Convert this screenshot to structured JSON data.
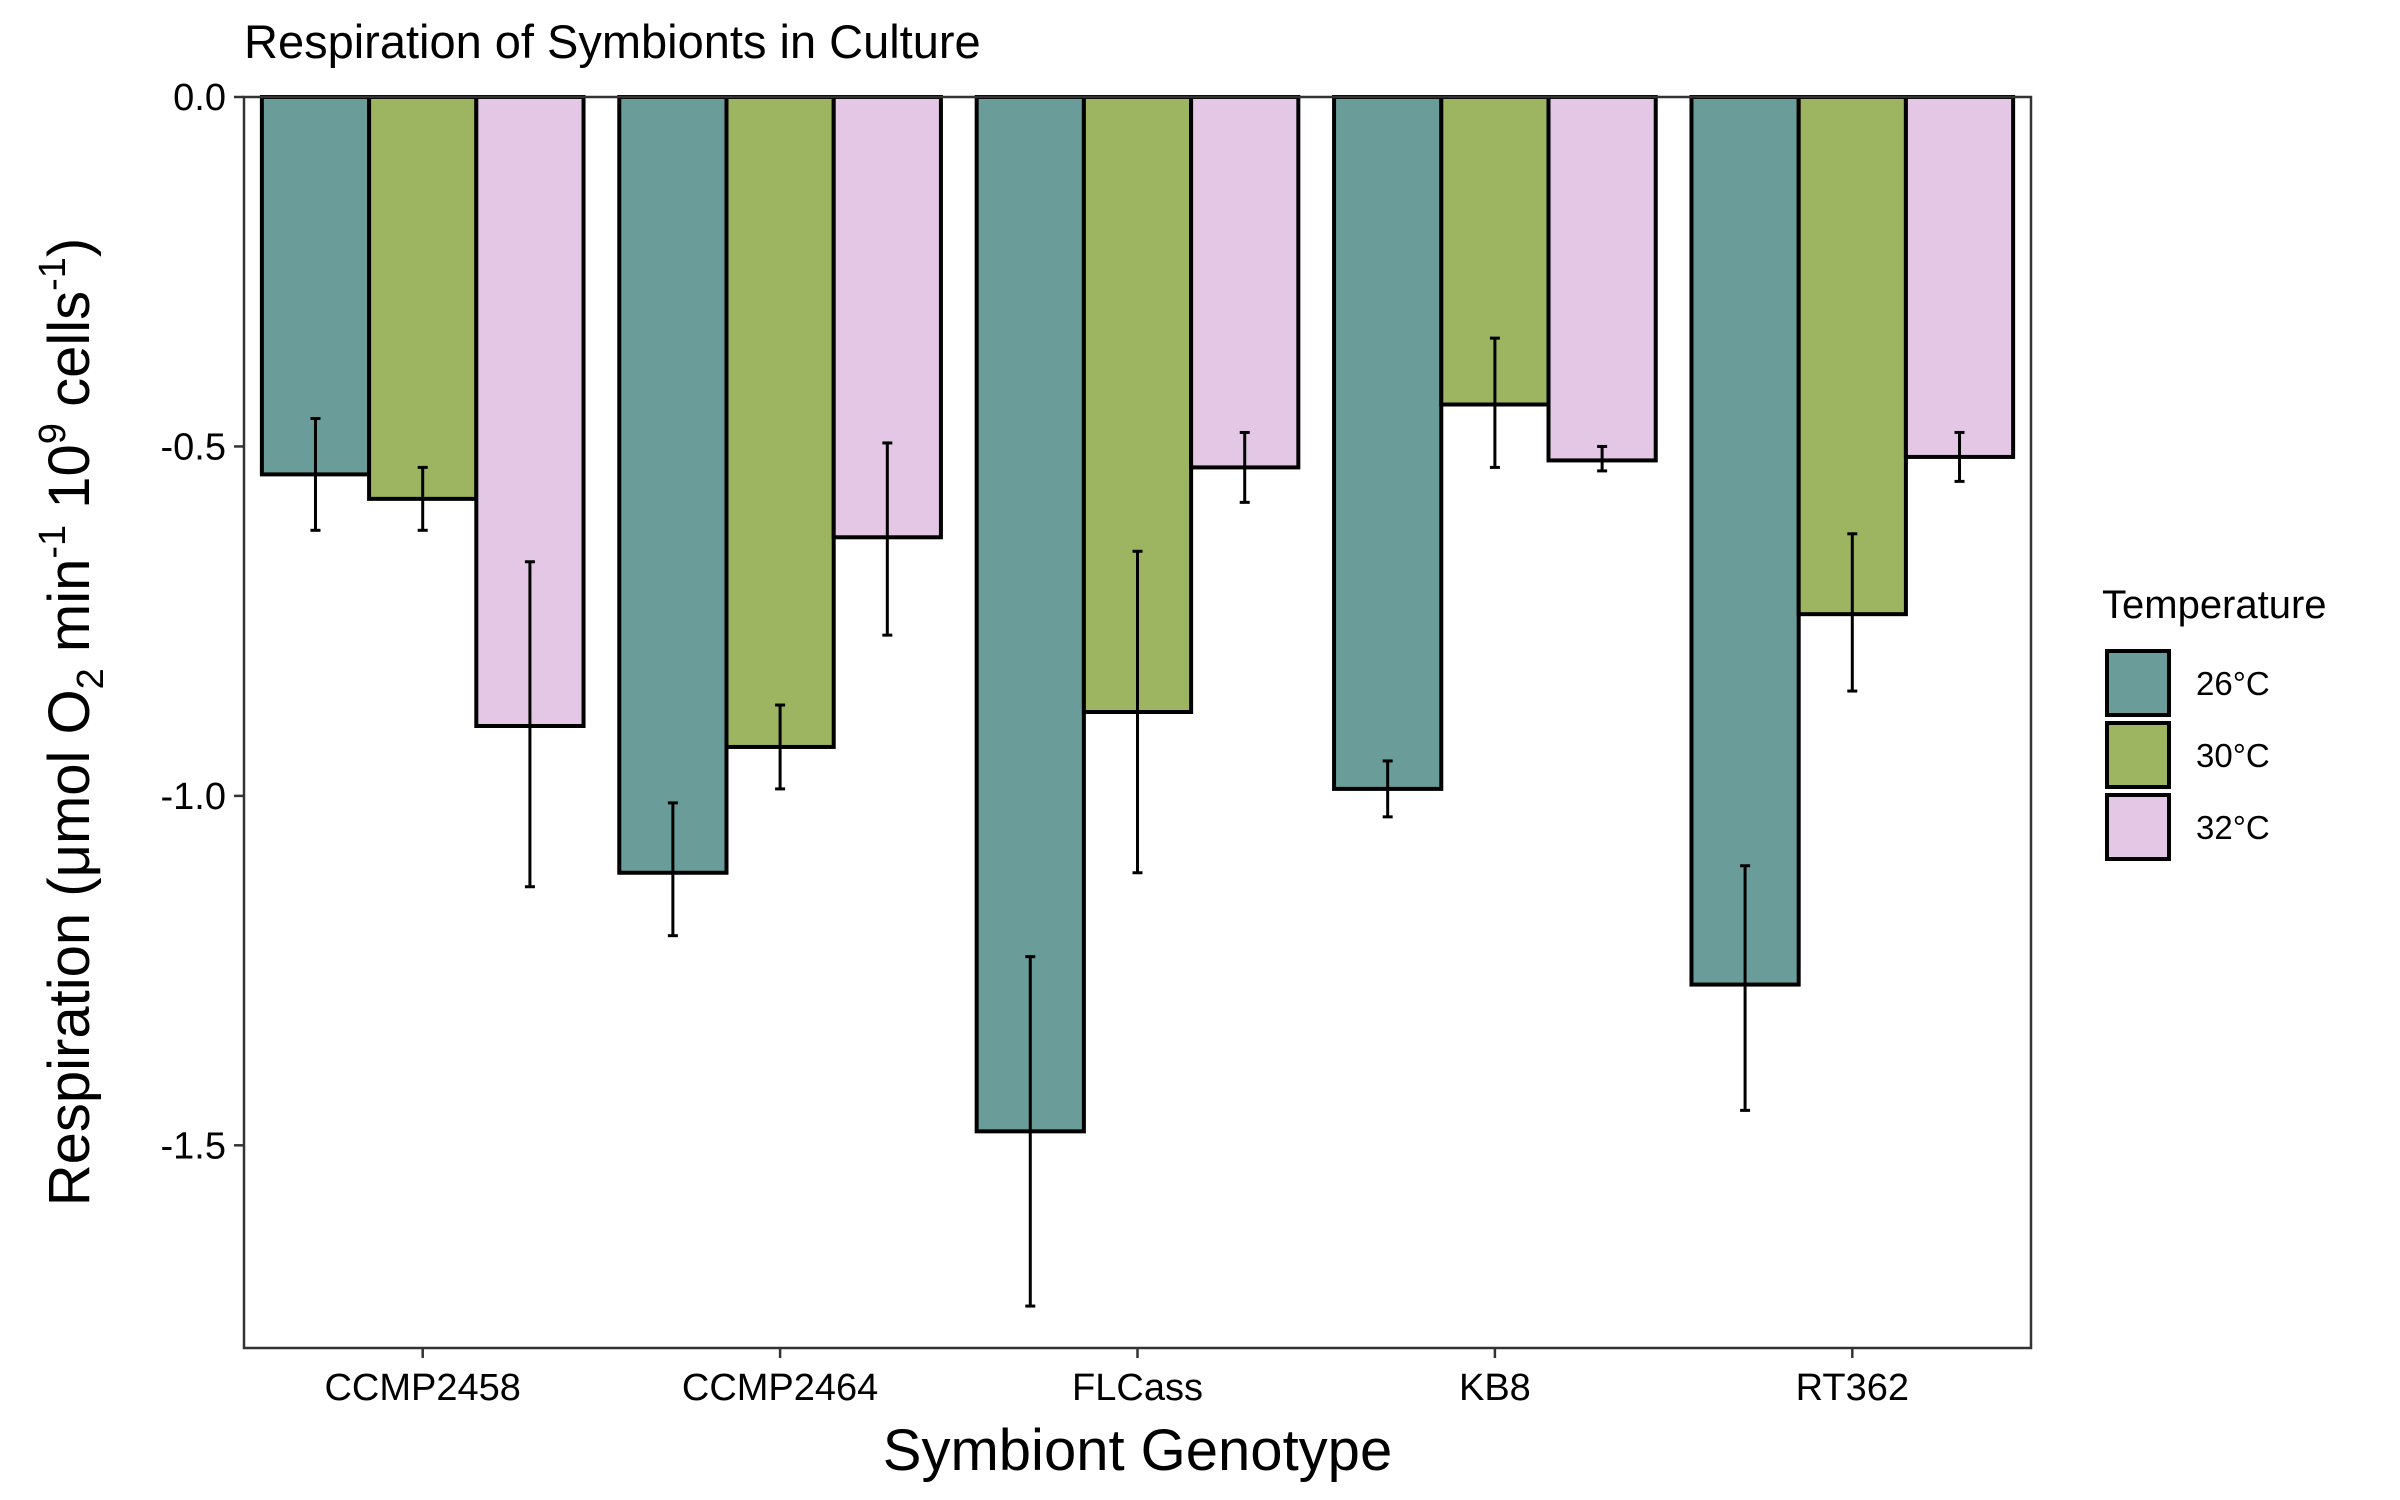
{
  "chart_data": {
    "type": "bar",
    "title": "Respiration of Symbionts in Culture",
    "xlabel": "Symbiont Genotype",
    "ylabel": {
      "prefix": "Respiration (μmol O",
      "o2_sub": "2",
      "min": " min",
      "min_sup": "-1",
      "ten": " 10",
      "ten_sup": "9",
      "cells": " cells",
      "cells_sup": "-1",
      "suffix": ")"
    },
    "categories": [
      "CCMP2458",
      "CCMP2464",
      "FLCass",
      "KB8",
      "RT362"
    ],
    "ylim": [
      -1.79,
      0.0
    ],
    "yticks": [
      0.0,
      -0.5,
      -1.0,
      -1.5
    ],
    "ytick_labels": [
      "0.0",
      "-0.5",
      "-1.0",
      "-1.5"
    ],
    "grid": false,
    "legend": {
      "title": "Temperature",
      "position": "right"
    },
    "series": [
      {
        "name": "26°C",
        "color": "#6a9c99",
        "values": [
          -0.54,
          -1.11,
          -1.48,
          -0.99,
          -1.27
        ],
        "error_low": [
          -0.62,
          -1.2,
          -1.73,
          -1.03,
          -1.45
        ],
        "error_high": [
          -0.46,
          -1.01,
          -1.23,
          -0.95,
          -1.1
        ]
      },
      {
        "name": "30°C",
        "color": "#9db461",
        "values": [
          -0.575,
          -0.93,
          -0.88,
          -0.44,
          -0.74
        ],
        "error_low": [
          -0.62,
          -0.99,
          -1.11,
          -0.53,
          -0.85
        ],
        "error_high": [
          -0.53,
          -0.87,
          -0.65,
          -0.345,
          -0.625
        ]
      },
      {
        "name": "32°C",
        "color": "#e3c7e5",
        "values": [
          -0.9,
          -0.63,
          -0.53,
          -0.52,
          -0.515
        ],
        "error_low": [
          -1.13,
          -0.77,
          -0.58,
          -0.535,
          -0.55
        ],
        "error_high": [
          -0.665,
          -0.495,
          -0.48,
          -0.5,
          -0.48
        ]
      }
    ]
  }
}
